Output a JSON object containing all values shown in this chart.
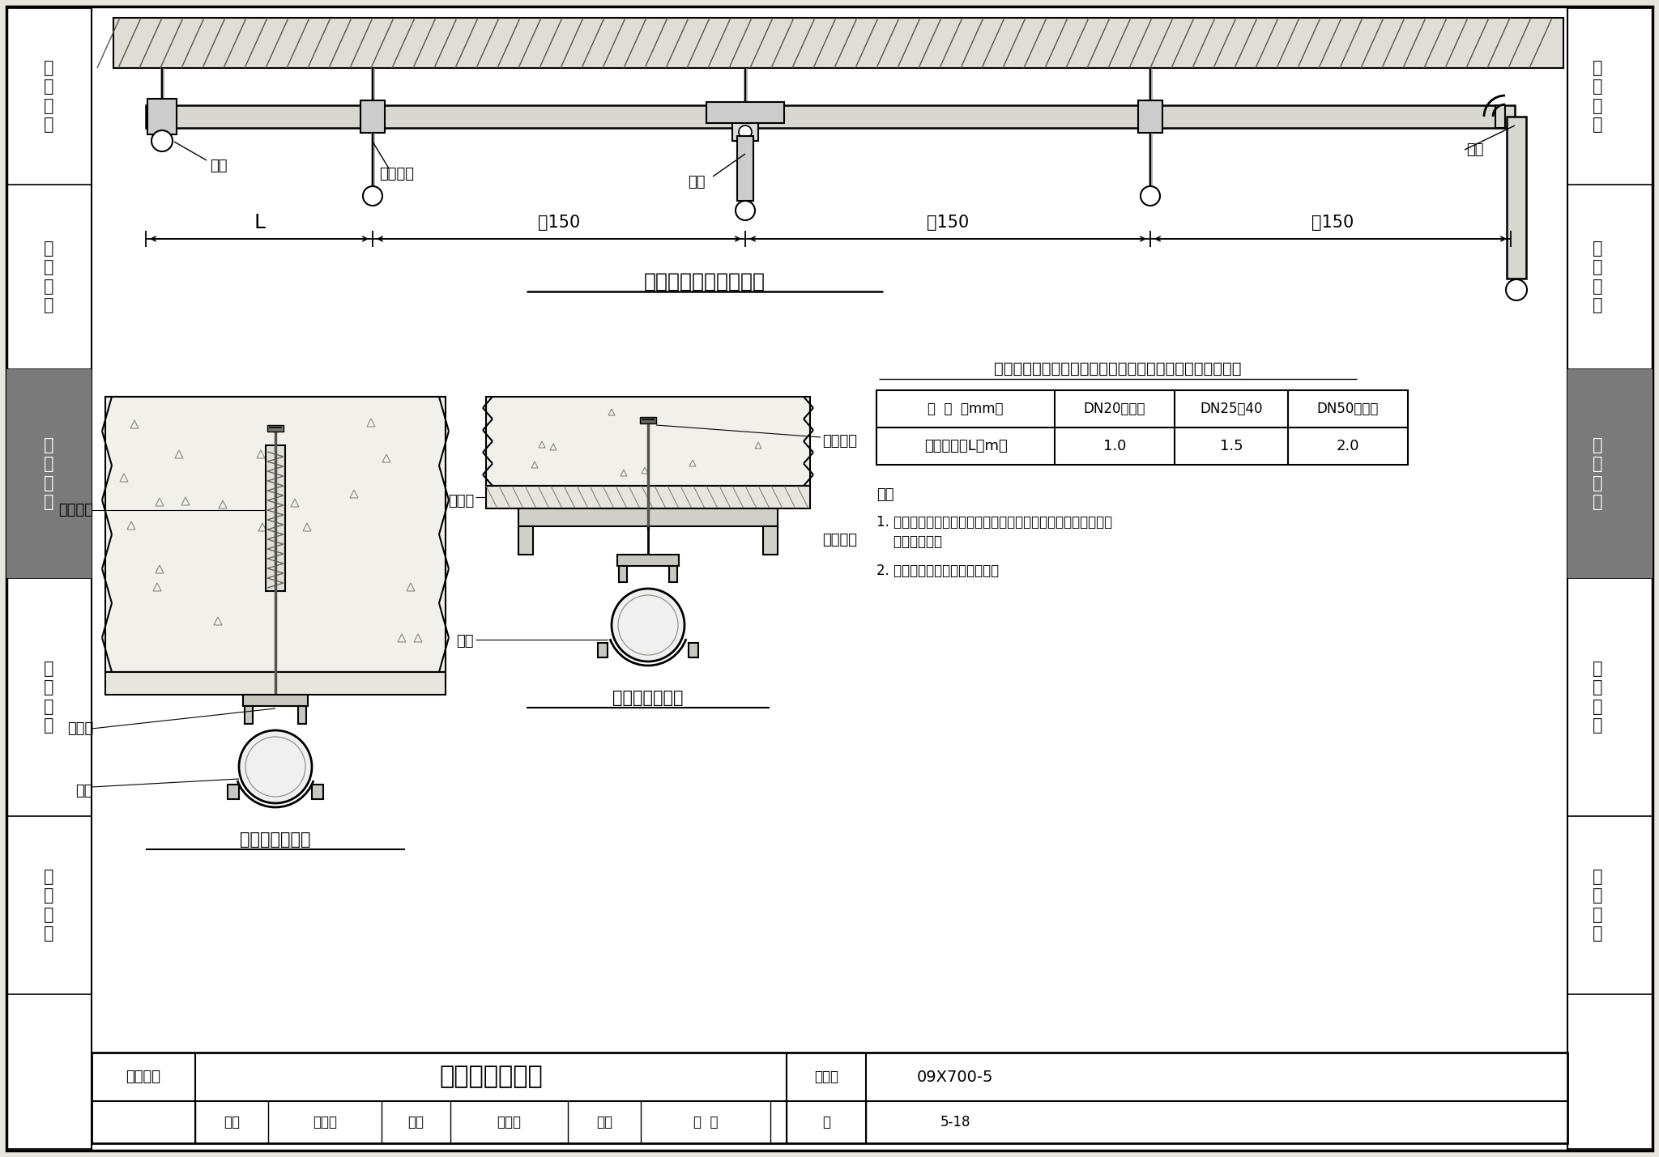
{
  "bg_color": "#e8e5de",
  "page_bg": "#ffffff",
  "sidebar_gray": "#7a7a7a",
  "sidebar_labels": [
    "机\n房\n工\n程",
    "供\n电\n电\n源",
    "缆\n线\n敷\n设",
    "设\n备\n安\n装",
    "防\n雷\n接\n地"
  ],
  "sidebar_divs_y": [
    10,
    228,
    456,
    714,
    1008,
    1228,
    1419
  ],
  "title_top": "硬塑管沿墙、楼板明装",
  "title_table": "硬塑料管用吊架、支架或沿墙敷设时管材固定点间最大间距",
  "th0": "管  径  （mm）",
  "th1": "DN20及以下",
  "th2": "DN25～40",
  "th3": "DN50及以上",
  "tr0": "固定点间距L（m）",
  "tr1": "1.0",
  "tr2": "1.5",
  "tr3": "2.0",
  "note_title": "注：",
  "note1": "1. 管卡固定方式根据施工现场具体条件定，亦可采用管夹固定，",
  "note1b": "    做法同管卡。",
  "note2": "2. 塑料胀管根据管径大小选用。",
  "lbl_guanka": "管卡",
  "lbl_yingsuliao": "硬塑料管",
  "lbl_guancha": "管叉",
  "lbl_wantou": "弯头",
  "lbl_L": "L",
  "lbl_150": "～150",
  "lbl_suliaozhang": "塑料胀管",
  "lbl_muluo": "木螺丝",
  "lbl_shigao": "石膏板",
  "lbl_zikao": "自攻螺丝",
  "lbl_guanka2": "管卡",
  "lbl_qinggang": "轻钢龙骨",
  "title_bl": "用塑料胀管安装",
  "title_bm": "用自攻螺丝安装",
  "ft_spec": "缆线敷设",
  "ft_title": "硬塑料管明敷设",
  "ft_tujihao": "图集号",
  "ft_code": "09X700-5",
  "ft_shenhe": "审核",
  "ft_shenhe_name": "李兴能",
  "ft_jiaodui": "校对",
  "ft_jiaodui_name": "张继春",
  "ft_sheji": "设计",
  "ft_sheji_name": "陶  炜",
  "ft_ye": "页",
  "ft_page": "5-18"
}
